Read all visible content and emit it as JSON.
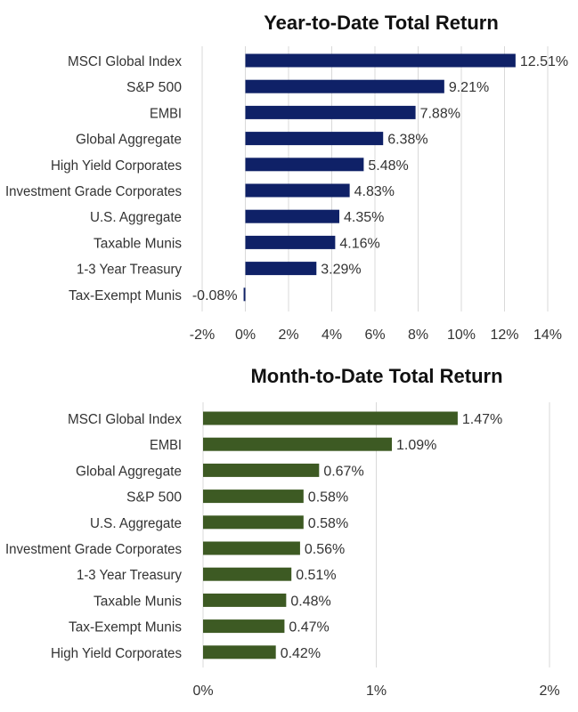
{
  "chart_data": [
    {
      "type": "bar",
      "orientation": "horizontal",
      "title": "Year-to-Date Total Return",
      "categories": [
        "MSCI Global Index",
        "S&P 500",
        "EMBI",
        "Global Aggregate",
        "High Yield Corporates",
        "Investment Grade Corporates",
        "U.S. Aggregate",
        "Taxable Munis",
        "1-3 Year Treasury",
        "Tax-Exempt Munis"
      ],
      "values": [
        12.51,
        9.21,
        7.88,
        6.38,
        5.48,
        4.83,
        4.35,
        4.16,
        3.29,
        -0.08
      ],
      "data_labels": [
        "12.51%",
        "9.21%",
        "7.88%",
        "6.38%",
        "5.48%",
        "4.83%",
        "4.35%",
        "4.16%",
        "3.29%",
        "-0.08%"
      ],
      "xlim": [
        -2,
        14
      ],
      "xticks": [
        -2,
        0,
        2,
        4,
        6,
        8,
        10,
        12,
        14
      ],
      "xtick_labels": [
        "-2%",
        "0%",
        "2%",
        "4%",
        "6%",
        "8%",
        "10%",
        "12%",
        "14%"
      ],
      "grid": true,
      "legend": "none",
      "color": "#0f2167"
    },
    {
      "type": "bar",
      "orientation": "horizontal",
      "title": "Month-to-Date Total Return",
      "categories": [
        "MSCI Global Index",
        "EMBI",
        "Global Aggregate",
        "S&P 500",
        "U.S. Aggregate",
        "Investment Grade Corporates",
        "1-3 Year Treasury",
        "Taxable Munis",
        "Tax-Exempt Munis",
        "High Yield Corporates"
      ],
      "values": [
        1.47,
        1.09,
        0.67,
        0.58,
        0.58,
        0.56,
        0.51,
        0.48,
        0.47,
        0.42
      ],
      "data_labels": [
        "1.47%",
        "1.09%",
        "0.67%",
        "0.58%",
        "0.58%",
        "0.56%",
        "0.51%",
        "0.48%",
        "0.47%",
        "0.42%"
      ],
      "xlim": [
        0,
        2
      ],
      "xticks": [
        0,
        1,
        2
      ],
      "xtick_labels": [
        "0%",
        "1%",
        "2%"
      ],
      "grid": true,
      "legend": "none",
      "color": "#3d5a23"
    }
  ]
}
